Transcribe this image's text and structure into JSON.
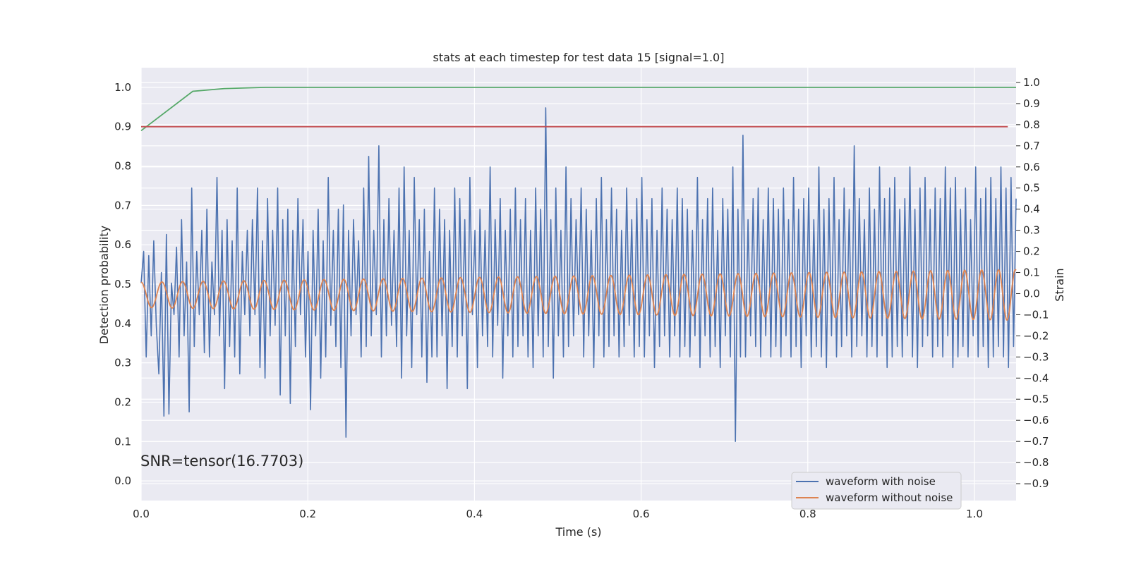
{
  "chart_data": {
    "type": "line",
    "title": "stats at each timestep for test data 15 [signal=1.0]",
    "xlabel": "Time (s)",
    "ylabel_left": "Detection probability",
    "ylabel_right": "Strain",
    "xlim": [
      0.0,
      1.05
    ],
    "ylim_left": [
      -0.05,
      1.05
    ],
    "ylim_right": [
      -0.98,
      1.07
    ],
    "xticks": [
      "0.0",
      "0.2",
      "0.4",
      "0.6",
      "0.8",
      "1.0"
    ],
    "yticks_left": [
      "0.0",
      "0.1",
      "0.2",
      "0.3",
      "0.4",
      "0.5",
      "0.6",
      "0.7",
      "0.8",
      "0.9",
      "1.0"
    ],
    "yticks_right": [
      "−0.9",
      "−0.8",
      "−0.7",
      "−0.6",
      "−0.5",
      "−0.4",
      "−0.3",
      "−0.2",
      "−0.1",
      "0.0",
      "0.1",
      "0.2",
      "0.3",
      "0.4",
      "0.5",
      "0.6",
      "0.7",
      "0.8",
      "0.9",
      "1.0"
    ],
    "annotation": "SNR=tensor(16.7703)",
    "grid": true,
    "legend_position": "lower-right",
    "series": [
      {
        "name": "waveform with noise",
        "axis": "right",
        "color": "#4c72b0",
        "values": [
          0.05,
          0.2,
          -0.3,
          0.18,
          -0.2,
          0.25,
          -0.15,
          -0.38,
          0.1,
          -0.58,
          0.28,
          -0.57,
          0.05,
          -0.1,
          0.22,
          -0.3,
          0.35,
          -0.2,
          0.15,
          -0.56,
          0.5,
          -0.25,
          0.2,
          -0.1,
          0.3,
          -0.28,
          0.4,
          -0.3,
          0.15,
          -0.1,
          0.55,
          -0.2,
          0.3,
          -0.45,
          0.35,
          -0.25,
          0.25,
          -0.3,
          0.5,
          -0.38,
          0.2,
          -0.1,
          0.3,
          -0.2,
          0.35,
          -0.1,
          0.5,
          -0.35,
          0.25,
          -0.4,
          0.45,
          -0.2,
          0.3,
          -0.15,
          0.5,
          -0.48,
          0.35,
          -0.2,
          0.4,
          -0.52,
          0.3,
          -0.25,
          0.45,
          -0.1,
          0.35,
          -0.3,
          0.2,
          -0.55,
          0.3,
          -0.2,
          0.4,
          -0.4,
          0.25,
          -0.3,
          0.55,
          -0.15,
          0.3,
          -0.25,
          0.4,
          -0.35,
          0.42,
          -0.68,
          0.3,
          -0.2,
          0.35,
          -0.1,
          0.25,
          -0.3,
          0.5,
          -0.25,
          0.65,
          -0.2,
          0.3,
          -0.1,
          0.7,
          -0.3,
          0.35,
          -0.2,
          0.45,
          -0.15,
          0.3,
          -0.25,
          0.5,
          -0.4,
          0.6,
          -0.2,
          0.3,
          -0.35,
          0.55,
          -0.1,
          0.35,
          -0.3,
          0.4,
          -0.42,
          0.2,
          -0.3,
          0.5,
          -0.3,
          0.4,
          -0.2,
          0.35,
          -0.45,
          0.3,
          -0.25,
          0.5,
          -0.3,
          0.45,
          -0.2,
          0.35,
          -0.45,
          0.55,
          -0.1,
          0.3,
          -0.35,
          0.4,
          -0.2,
          0.3,
          -0.25,
          0.6,
          -0.3,
          0.35,
          -0.15,
          0.45,
          -0.4,
          0.3,
          -0.2,
          0.4,
          -0.3,
          0.5,
          -0.25,
          0.35,
          -0.2,
          0.45,
          -0.3,
          0.3,
          -0.35,
          0.5,
          -0.2,
          0.4,
          -0.3,
          0.88,
          -0.25,
          0.35,
          -0.4,
          0.5,
          -0.2,
          0.3,
          -0.3,
          0.6,
          -0.25,
          0.45,
          -0.2,
          0.35,
          -0.1,
          0.5,
          -0.3,
          0.4,
          -0.2,
          0.3,
          -0.35,
          0.45,
          -0.2,
          0.55,
          -0.3,
          0.35,
          -0.25,
          0.5,
          -0.2,
          0.4,
          -0.3,
          0.3,
          -0.25,
          0.5,
          -0.15,
          0.35,
          -0.3,
          0.45,
          -0.25,
          0.55,
          -0.3,
          0.35,
          -0.2,
          0.45,
          -0.35,
          0.3,
          -0.25,
          0.5,
          -0.2,
          0.4,
          -0.3,
          0.35,
          -0.2,
          0.5,
          -0.3,
          0.45,
          -0.25,
          0.4,
          -0.3,
          0.3,
          -0.2,
          0.55,
          -0.35,
          0.35,
          -0.2,
          0.45,
          -0.3,
          0.5,
          -0.25,
          0.3,
          -0.35,
          0.45,
          -0.2,
          0.4,
          -0.3,
          0.6,
          -0.7,
          0.4,
          -0.3,
          0.75,
          -0.3,
          0.35,
          -0.2,
          0.45,
          -0.25,
          0.5,
          -0.3,
          0.35,
          -0.2,
          0.5,
          -0.3,
          0.45,
          -0.25,
          0.4,
          -0.3,
          0.5,
          -0.2,
          0.35,
          -0.3,
          0.55,
          -0.25,
          0.4,
          -0.35,
          0.45,
          -0.2,
          0.5,
          -0.3,
          0.35,
          -0.25,
          0.6,
          -0.3,
          0.4,
          -0.35,
          0.45,
          -0.2,
          0.55,
          -0.3,
          0.35,
          -0.25,
          0.5,
          -0.2,
          0.4,
          -0.3,
          0.7,
          -0.25,
          0.45,
          -0.2,
          0.35,
          -0.3,
          0.5,
          -0.25,
          0.4,
          -0.3,
          0.6,
          -0.2,
          0.45,
          -0.35,
          0.5,
          -0.3,
          0.55,
          -0.25,
          0.4,
          -0.3,
          0.45,
          -0.2,
          0.6,
          -0.3,
          0.4,
          -0.35,
          0.5,
          -0.25,
          0.55,
          -0.2,
          0.4,
          -0.3,
          0.5,
          -0.25,
          0.45,
          -0.3,
          0.6,
          -0.2,
          0.5,
          -0.35,
          0.55,
          -0.3,
          0.4,
          -0.25,
          0.5,
          -0.3,
          0.35,
          -0.2,
          0.6,
          -0.3,
          0.45,
          -0.25,
          0.5,
          -0.35,
          0.55,
          -0.3,
          0.45,
          -0.25,
          0.6,
          -0.3,
          0.5,
          -0.35,
          0.55,
          -0.25,
          0.45
        ]
      },
      {
        "name": "waveform without noise",
        "axis": "right",
        "color": "#dd8452",
        "amplitude_range": [
          0.06,
          0.12
        ],
        "cycles": 42
      },
      {
        "name": "",
        "axis": "left",
        "color": "#55a868",
        "x": [
          0.0,
          0.062,
          0.1,
          0.15,
          1.05
        ],
        "values": [
          0.89,
          0.99,
          0.997,
          1.0,
          1.0
        ]
      },
      {
        "name": "",
        "axis": "left",
        "color": "#c44e52",
        "x": [
          0.0,
          1.04
        ],
        "values": [
          0.9,
          0.9
        ]
      }
    ]
  }
}
